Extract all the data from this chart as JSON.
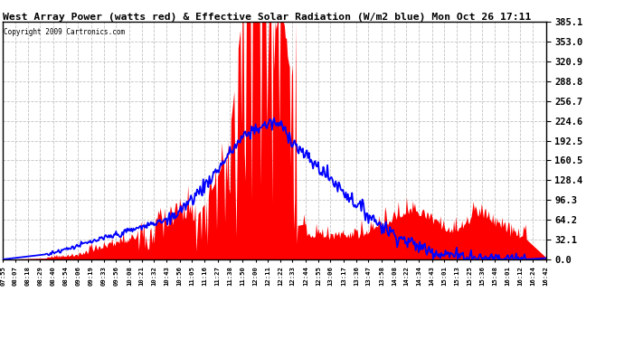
{
  "title": "West Array Power (watts red) & Effective Solar Radiation (W/m2 blue) Mon Oct 26 17:11",
  "copyright": "Copyright 2009 Cartronics.com",
  "ylim": [
    0.0,
    385.1
  ],
  "yticks": [
    0.0,
    32.1,
    64.2,
    96.3,
    128.4,
    160.5,
    192.5,
    224.6,
    256.7,
    288.8,
    320.9,
    353.0,
    385.1
  ],
  "background_color": "#ffffff",
  "plot_bg_color": "#ffffff",
  "grid_color": "#bbbbbb",
  "red_color": "#ff0000",
  "blue_color": "#0000ff",
  "x_labels": [
    "07:55",
    "08:07",
    "08:18",
    "08:29",
    "08:40",
    "08:54",
    "09:06",
    "09:19",
    "09:33",
    "09:56",
    "10:08",
    "10:21",
    "10:32",
    "10:43",
    "10:56",
    "11:05",
    "11:16",
    "11:27",
    "11:38",
    "11:50",
    "12:00",
    "12:11",
    "12:22",
    "12:33",
    "12:44",
    "12:55",
    "13:06",
    "13:17",
    "13:36",
    "13:47",
    "13:58",
    "14:08",
    "14:22",
    "14:34",
    "14:43",
    "15:01",
    "15:13",
    "15:25",
    "15:36",
    "15:48",
    "16:01",
    "16:12",
    "16:24",
    "16:42"
  ]
}
